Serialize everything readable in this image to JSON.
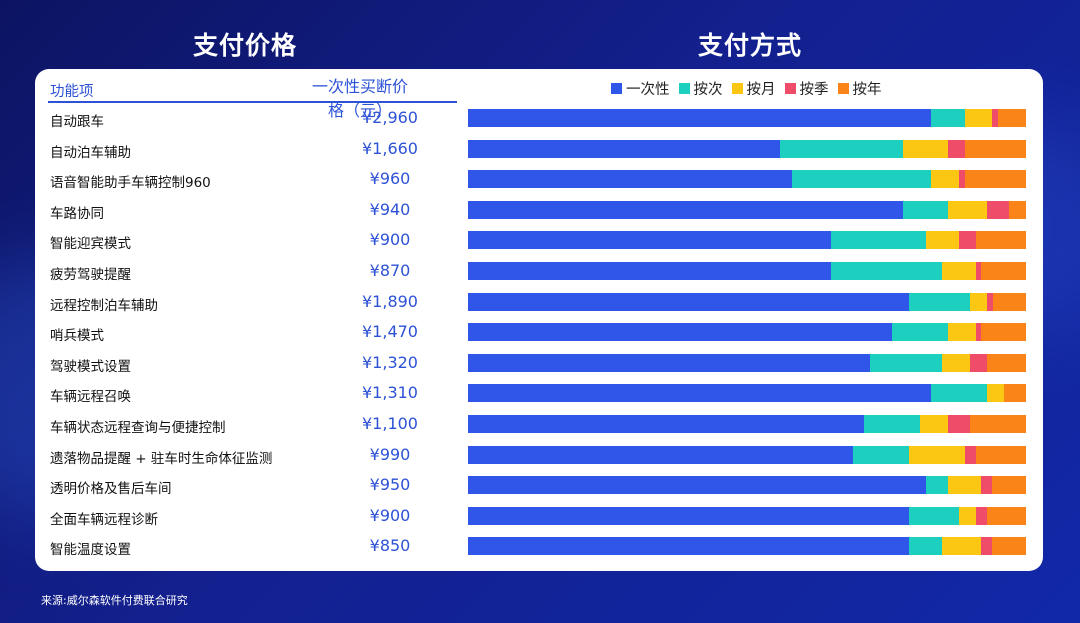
{
  "headings": {
    "left": "支付价格",
    "right": "支付方式"
  },
  "table": {
    "feature_header": "功能项",
    "price_header": "一次性买断价格（元）"
  },
  "legend": [
    {
      "label": "一次性",
      "color": "#2f56e8"
    },
    {
      "label": "按次",
      "color": "#1ccfbf"
    },
    {
      "label": "按月",
      "color": "#fcc713"
    },
    {
      "label": "按季",
      "color": "#ee4c68"
    },
    {
      "label": "按年",
      "color": "#fb8419"
    }
  ],
  "chart_data": {
    "type": "bar",
    "stacked": true,
    "orientation": "horizontal",
    "categories": [
      "自动跟车",
      "自动泊车辅助",
      "语音智能助手车辆控制960",
      "车路协同",
      "智能迎宾模式",
      "疲劳驾驶提醒",
      "远程控制泊车辅助",
      "哨兵模式",
      "驾驶模式设置",
      "车辆远程召唤",
      "车辆状态远程查询与便捷控制",
      "遗落物品提醒 + 驻车时生命体征监测",
      "透明价格及售后车间",
      "全面车辆远程诊断",
      "智能温度设置"
    ],
    "prices": [
      "¥2,960",
      "¥1,660",
      "¥960",
      "¥940",
      "¥900",
      "¥870",
      "¥1,890",
      "¥1,470",
      "¥1,320",
      "¥1,310",
      "¥1,100",
      "¥990",
      "¥950",
      "¥900",
      "¥850"
    ],
    "series": [
      {
        "name": "一次性",
        "values": [
          83,
          56,
          58,
          78,
          65,
          65,
          79,
          76,
          72,
          83,
          71,
          69,
          82,
          79,
          79
        ]
      },
      {
        "name": "按次",
        "values": [
          6,
          22,
          25,
          8,
          17,
          20,
          11,
          10,
          13,
          10,
          10,
          10,
          4,
          9,
          6
        ]
      },
      {
        "name": "按月",
        "values": [
          5,
          8,
          5,
          7,
          6,
          6,
          3,
          5,
          5,
          3,
          5,
          10,
          6,
          3,
          7
        ]
      },
      {
        "name": "按季",
        "values": [
          1,
          3,
          1,
          4,
          3,
          1,
          1,
          1,
          3,
          0,
          4,
          2,
          2,
          2,
          2
        ]
      },
      {
        "name": "按年",
        "values": [
          5,
          11,
          11,
          3,
          9,
          8,
          6,
          8,
          7,
          4,
          10,
          9,
          6,
          7,
          6
        ]
      }
    ]
  },
  "source": "来源:威尔森软件付费联合研究"
}
